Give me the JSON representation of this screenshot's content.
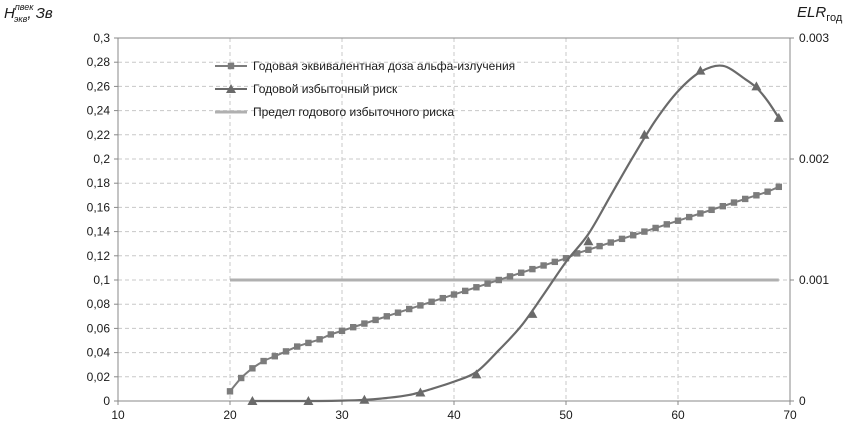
{
  "chart_data": {
    "type": "line",
    "x_range": [
      10,
      70
    ],
    "x_ticks": [
      "10",
      "20",
      "30",
      "40",
      "50",
      "60",
      "70"
    ],
    "y_left_range": [
      0,
      0.3
    ],
    "y_left_ticks": [
      "0",
      "0,02",
      "0,04",
      "0,06",
      "0,08",
      "0,1",
      "0,12",
      "0,14",
      "0,16",
      "0,18",
      "0,2",
      "0,22",
      "0,24",
      "0,26",
      "0,28",
      "0,3"
    ],
    "y_right_range": [
      0,
      0.003
    ],
    "y_right_ticks": [
      "0",
      "0.001",
      "0.002",
      "0.003"
    ],
    "y_left_label": {
      "main": "H",
      "superscript": "пвек",
      "subscript": "экв",
      "rest": ", Зв"
    },
    "y_right_label": {
      "main": "ELR",
      "subscript": "год"
    },
    "grid": true,
    "legend_position": "top-center",
    "colors": {
      "dose": "#7c7c7c",
      "risk": "#6a6a6a",
      "limit": "#b0b0b0",
      "grid": "#c8c8c8",
      "axis": "#888888"
    },
    "series": [
      {
        "name": "Годовая эквивалентная доза альфа-излучения",
        "axis": "left",
        "marker": "square",
        "x": [
          20,
          21,
          22,
          23,
          24,
          25,
          26,
          27,
          28,
          29,
          30,
          31,
          32,
          33,
          34,
          35,
          36,
          37,
          38,
          39,
          40,
          41,
          42,
          43,
          44,
          45,
          46,
          47,
          48,
          49,
          50,
          51,
          52,
          53,
          54,
          55,
          56,
          57,
          58,
          59,
          60,
          61,
          62,
          63,
          64,
          65,
          66,
          67,
          68,
          69
        ],
        "y": [
          0.008,
          0.019,
          0.027,
          0.033,
          0.037,
          0.041,
          0.045,
          0.048,
          0.051,
          0.055,
          0.058,
          0.061,
          0.064,
          0.067,
          0.07,
          0.073,
          0.076,
          0.079,
          0.082,
          0.085,
          0.088,
          0.091,
          0.094,
          0.097,
          0.1,
          0.103,
          0.106,
          0.109,
          0.112,
          0.115,
          0.118,
          0.122,
          0.125,
          0.128,
          0.131,
          0.134,
          0.137,
          0.14,
          0.143,
          0.146,
          0.149,
          0.152,
          0.155,
          0.158,
          0.161,
          0.164,
          0.167,
          0.17,
          0.173,
          0.177
        ]
      },
      {
        "name": "Годовой избыточный риск",
        "axis": "right",
        "marker": "triangle",
        "x": [
          22,
          24,
          26,
          28,
          30,
          32,
          34,
          36,
          38,
          40,
          42,
          44,
          46,
          48,
          50,
          52,
          54,
          56,
          58,
          60,
          62,
          64,
          66,
          67,
          68,
          69
        ],
        "y": [
          0.0,
          0.0,
          0.0,
          0.0,
          3e-06,
          1e-05,
          2.5e-05,
          5e-05,
          0.0001,
          0.00016,
          0.00024,
          0.00042,
          0.00062,
          0.00088,
          0.00115,
          0.00138,
          0.0017,
          0.00202,
          0.00232,
          0.00256,
          0.00272,
          0.00277,
          0.00266,
          0.00259,
          0.00248,
          0.00234
        ],
        "markers_x": [
          22,
          27,
          32,
          37,
          42,
          47,
          52,
          57,
          62,
          67,
          69
        ],
        "markers_y": [
          0.0,
          0.0,
          1e-05,
          7e-05,
          0.00022,
          0.00072,
          0.00132,
          0.0022,
          0.00273,
          0.0026,
          0.00234
        ]
      },
      {
        "name": "Предел годового избыточного риска",
        "axis": "right",
        "marker": "none",
        "x": [
          20,
          69
        ],
        "y": [
          0.001,
          0.001
        ]
      }
    ]
  }
}
